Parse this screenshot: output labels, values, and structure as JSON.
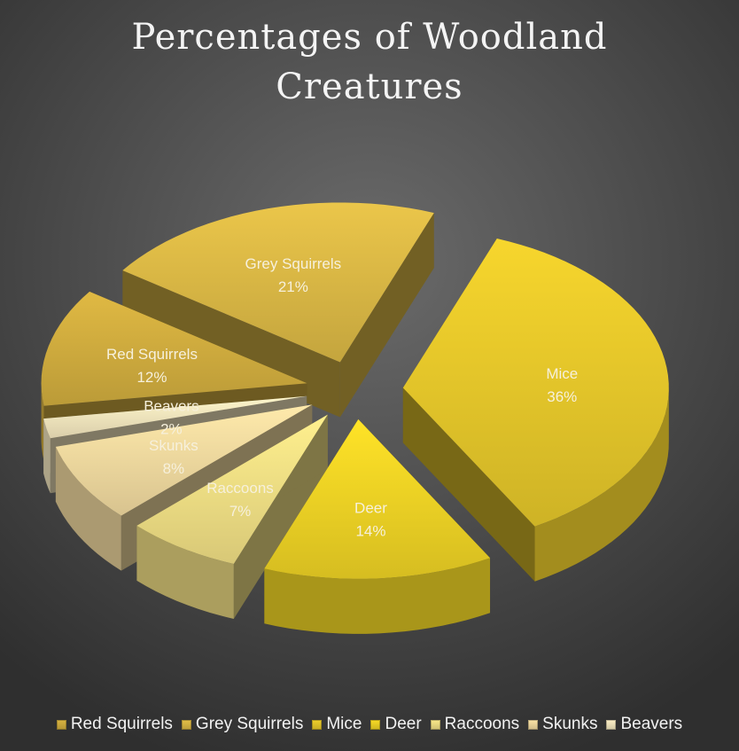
{
  "chart_data": {
    "type": "pie",
    "style": "3d-exploded",
    "title": "Percentages of Woodland Creatures",
    "title_lines": [
      "Percentages of Woodland",
      "Creatures"
    ],
    "categories": [
      "Red Squirrels",
      "Grey Squirrels",
      "Mice",
      "Deer",
      "Raccoons",
      "Skunks",
      "Beavers"
    ],
    "values": [
      12,
      21,
      36,
      14,
      7,
      8,
      2
    ],
    "value_labels": [
      "12%",
      "21%",
      "36%",
      "14%",
      "7%",
      "8%",
      "2%"
    ],
    "colors": [
      "#d9b441",
      "#e4c048",
      "#f0d02c",
      "#f9dc26",
      "#fbe98a",
      "#fbe3a6",
      "#fdf0c6"
    ],
    "legend": {
      "position": "bottom"
    }
  }
}
